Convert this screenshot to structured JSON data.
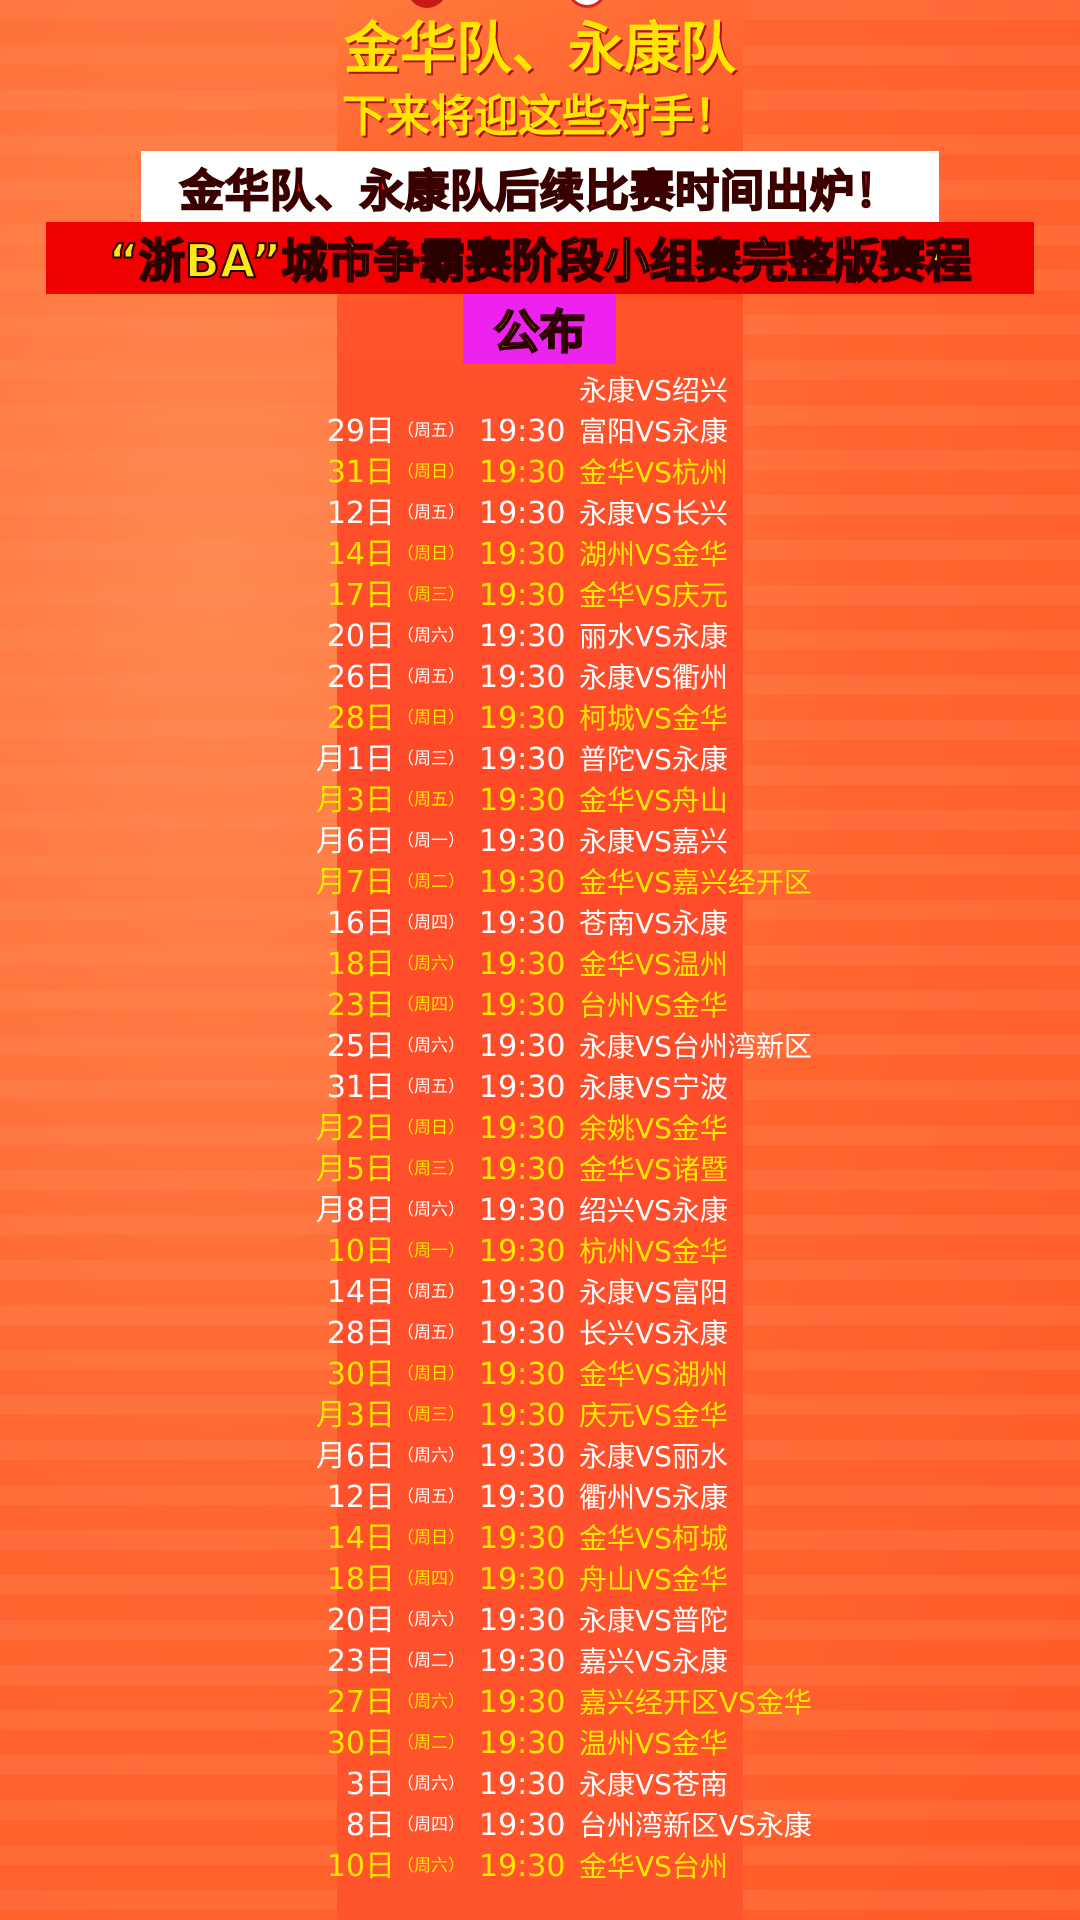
{
  "colors": {
    "highlight": "#ffe600",
    "normal": "#ffffff",
    "banner_red": "#f00000",
    "banner_magenta": "#ee22ee"
  },
  "poster": {
    "title": "金华队、永康队",
    "subtitle": "下来将迎这些对手！"
  },
  "overlay": {
    "headline": "金华队、永康队后续比赛时间出炉！",
    "subheadline": "“浙BA”城市争霸赛阶段小组赛完整版赛程",
    "tag": "公布"
  },
  "schedule": [
    {
      "date": "",
      "weekday": "",
      "time": "",
      "match": "永康VS绍兴",
      "hl": false
    },
    {
      "date": "29日",
      "weekday": "（周五）",
      "time": "19:30",
      "match": "富阳VS永康",
      "hl": false
    },
    {
      "date": "31日",
      "weekday": "（周日）",
      "time": "19:30",
      "match": "金华VS杭州",
      "hl": true
    },
    {
      "date": "12日",
      "weekday": "（周五）",
      "time": "19:30",
      "match": "永康VS长兴",
      "hl": false
    },
    {
      "date": "14日",
      "weekday": "（周日）",
      "time": "19:30",
      "match": "湖州VS金华",
      "hl": true
    },
    {
      "date": "17日",
      "weekday": "（周三）",
      "time": "19:30",
      "match": "金华VS庆元",
      "hl": true
    },
    {
      "date": "20日",
      "weekday": "（周六）",
      "time": "19:30",
      "match": "丽水VS永康",
      "hl": false
    },
    {
      "date": "26日",
      "weekday": "（周五）",
      "time": "19:30",
      "match": "永康VS衢州",
      "hl": false
    },
    {
      "date": "28日",
      "weekday": "（周日）",
      "time": "19:30",
      "match": "柯城VS金华",
      "hl": true
    },
    {
      "date": "月1日",
      "weekday": "（周三）",
      "time": "19:30",
      "match": "普陀VS永康",
      "hl": false
    },
    {
      "date": "月3日",
      "weekday": "（周五）",
      "time": "19:30",
      "match": "金华VS舟山",
      "hl": true
    },
    {
      "date": "月6日",
      "weekday": "（周一）",
      "time": "19:30",
      "match": "永康VS嘉兴",
      "hl": false
    },
    {
      "date": "月7日",
      "weekday": "（周二）",
      "time": "19:30",
      "match": "金华VS嘉兴经开区",
      "hl": true
    },
    {
      "date": "16日",
      "weekday": "（周四）",
      "time": "19:30",
      "match": "苍南VS永康",
      "hl": false
    },
    {
      "date": "18日",
      "weekday": "（周六）",
      "time": "19:30",
      "match": "金华VS温州",
      "hl": true
    },
    {
      "date": "23日",
      "weekday": "（周四）",
      "time": "19:30",
      "match": "台州VS金华",
      "hl": true
    },
    {
      "date": "25日",
      "weekday": "（周六）",
      "time": "19:30",
      "match": "永康VS台州湾新区",
      "hl": false
    },
    {
      "date": "31日",
      "weekday": "（周五）",
      "time": "19:30",
      "match": "永康VS宁波",
      "hl": false
    },
    {
      "date": "月2日",
      "weekday": "（周日）",
      "time": "19:30",
      "match": "余姚VS金华",
      "hl": true
    },
    {
      "date": "月5日",
      "weekday": "（周三）",
      "time": "19:30",
      "match": "金华VS诸暨",
      "hl": true
    },
    {
      "date": "月8日",
      "weekday": "（周六）",
      "time": "19:30",
      "match": "绍兴VS永康",
      "hl": false
    },
    {
      "date": "10日",
      "weekday": "（周一）",
      "time": "19:30",
      "match": "杭州VS金华",
      "hl": true
    },
    {
      "date": "14日",
      "weekday": "（周五）",
      "time": "19:30",
      "match": "永康VS富阳",
      "hl": false
    },
    {
      "date": "28日",
      "weekday": "（周五）",
      "time": "19:30",
      "match": "长兴VS永康",
      "hl": false
    },
    {
      "date": "30日",
      "weekday": "（周日）",
      "time": "19:30",
      "match": "金华VS湖州",
      "hl": true
    },
    {
      "date": "月3日",
      "weekday": "（周三）",
      "time": "19:30",
      "match": "庆元VS金华",
      "hl": true
    },
    {
      "date": "月6日",
      "weekday": "（周六）",
      "time": "19:30",
      "match": "永康VS丽水",
      "hl": false
    },
    {
      "date": "12日",
      "weekday": "（周五）",
      "time": "19:30",
      "match": "衢州VS永康",
      "hl": false
    },
    {
      "date": "14日",
      "weekday": "（周日）",
      "time": "19:30",
      "match": "金华VS柯城",
      "hl": true
    },
    {
      "date": "18日",
      "weekday": "（周四）",
      "time": "19:30",
      "match": "舟山VS金华",
      "hl": true
    },
    {
      "date": "20日",
      "weekday": "（周六）",
      "time": "19:30",
      "match": "永康VS普陀",
      "hl": false
    },
    {
      "date": "23日",
      "weekday": "（周二）",
      "time": "19:30",
      "match": "嘉兴VS永康",
      "hl": false
    },
    {
      "date": "27日",
      "weekday": "（周六）",
      "time": "19:30",
      "match": "嘉兴经开区VS金华",
      "hl": true
    },
    {
      "date": "30日",
      "weekday": "（周二）",
      "time": "19:30",
      "match": "温州VS金华",
      "hl": true
    },
    {
      "date": "3日",
      "weekday": "（周六）",
      "time": "19:30",
      "match": "永康VS苍南",
      "hl": false
    },
    {
      "date": "8日",
      "weekday": "（周四）",
      "time": "19:30",
      "match": "台州湾新区VS永康",
      "hl": false
    },
    {
      "date": "10日",
      "weekday": "（周六）",
      "time": "19:30",
      "match": "金华VS台州",
      "hl": true
    }
  ]
}
